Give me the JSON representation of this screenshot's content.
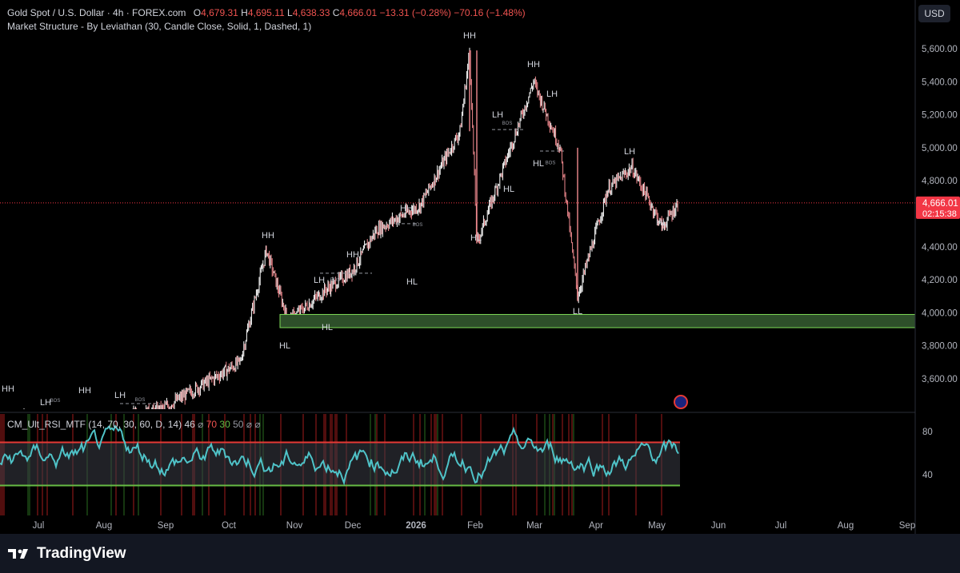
{
  "header": {
    "symbol": "Gold Spot / U.S. Dollar · 4h · FOREX.com",
    "o_label": "O",
    "o_val": "4,679.31",
    "h_label": "H",
    "h_val": "4,695.11",
    "l_label": "L",
    "l_val": "4,638.33",
    "c_label": "C",
    "c_val": "4,666.01",
    "chg": "−13.31 (−0.28%)",
    "chg2": "−70.16 (−1.48%)",
    "indicator": "Market Structure - By Leviathan (30, Candle Close, Solid, 1, Dashed, 1)",
    "currency": "USD"
  },
  "price_axis": {
    "ticks": [
      "5,600.00",
      "5,400.00",
      "5,200.00",
      "5,000.00",
      "4,800.00",
      "4,400.00",
      "4,200.00",
      "4,000.00",
      "3,800.00",
      "3,600.00"
    ],
    "last_price": "4,666.01",
    "countdown": "02:15:38"
  },
  "time_axis": {
    "labels": [
      "Jul",
      "Aug",
      "Sep",
      "Oct",
      "Nov",
      "Dec",
      "2026",
      "Feb",
      "Mar",
      "Apr",
      "May",
      "Jun",
      "Jul",
      "Aug",
      "Sep"
    ]
  },
  "rsi": {
    "title": "CM_Ult_RSI_MTF (14, 70, 30, 60, D, 14)",
    "value": "46",
    "null1": "⌀",
    "upper": "70",
    "lower": "30",
    "mid": "50",
    "null2": "⌀",
    "null3": "⌀",
    "axis_ticks": [
      "80",
      "40"
    ]
  },
  "brand": {
    "name": "TradingView"
  },
  "colors": {
    "bull": "#ffffff",
    "bear": "#f08a8f",
    "last_price": "#f23645",
    "demand_zone": "#2e4f2a",
    "demand_border": "#7ed957",
    "rsi_line": "#4fc3c8",
    "rsi_upper": "#e53935",
    "rsi_lower": "#66bb44"
  },
  "chart_data": {
    "type": "line",
    "title": "Gold Spot / U.S. Dollar · 4h · FOREX.com",
    "x": [
      "Jul",
      "Aug",
      "Sep",
      "Oct",
      "Oct",
      "Nov",
      "Nov",
      "Dec",
      "Dec",
      "2026",
      "Jan",
      "Feb",
      "Feb",
      "Mar",
      "Mar",
      "Mar",
      "Apr",
      "Apr",
      "May",
      "May"
    ],
    "series": [
      {
        "values": [
          3360,
          3345,
          3410,
          3700,
          4380,
          3950,
          4150,
          4250,
          4500,
          4650,
          5100,
          5590,
          4420,
          5400,
          5000,
          4100,
          4750,
          4880,
          4520,
          4666
        ]
      }
    ],
    "ylim": [
      3430,
      5700
    ],
    "market_structure_labels": [
      {
        "text": "HH",
        "x": "Jun",
        "y": 3450
      },
      {
        "text": "LH",
        "x": "Jun",
        "y": 3420
      },
      {
        "text": "HH",
        "x": "Jul",
        "y": 3450
      },
      {
        "text": "LH",
        "x": "Aug",
        "y": 3430
      },
      {
        "text": "HH",
        "x": "Oct",
        "y": 4390
      },
      {
        "text": "HL",
        "x": "Oct",
        "y": 3820
      },
      {
        "text": "LH",
        "x": "Nov",
        "y": 4240
      },
      {
        "text": "HL",
        "x": "Nov",
        "y": 3900
      },
      {
        "text": "HH",
        "x": "Nov",
        "y": 4270
      },
      {
        "text": "HL",
        "x": "Dec",
        "y": 4250
      },
      {
        "text": "HH",
        "x": "Dec",
        "y": 4560
      },
      {
        "text": "HH",
        "x": "Jan",
        "y": 5620
      },
      {
        "text": "HL",
        "x": "Jan",
        "y": 4380
      },
      {
        "text": "LH",
        "x": "Feb",
        "y": 5170
      },
      {
        "text": "HL",
        "x": "Feb",
        "y": 4800
      },
      {
        "text": "HH",
        "x": "Feb",
        "y": 5440
      },
      {
        "text": "LH",
        "x": "Mar",
        "y": 5230
      },
      {
        "text": "HL",
        "x": "Mar",
        "y": 4830
      },
      {
        "text": "LL",
        "x": "Mar",
        "y": 4000
      },
      {
        "text": "LH",
        "x": "Apr",
        "y": 4950
      },
      {
        "text": "HL",
        "x": "May",
        "y": 4480
      }
    ],
    "annotations": [
      "BOS"
    ],
    "demand_zone": [
      3910,
      3990
    ],
    "grid": false
  }
}
